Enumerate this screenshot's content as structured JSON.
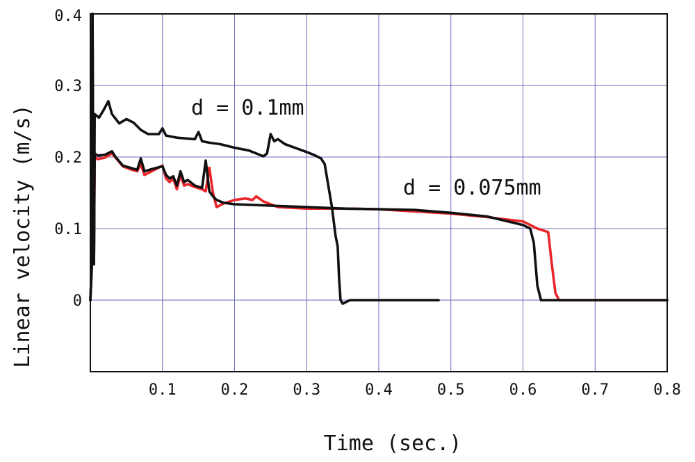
{
  "chart_data": {
    "type": "line",
    "xlabel": "Time (sec.)",
    "ylabel": "Linear velocity (m/s)",
    "xlim": [
      0,
      0.8
    ],
    "ylim": [
      -0.1,
      0.4
    ],
    "x_ticks": [
      0.1,
      0.2,
      0.3,
      0.4,
      0.5,
      0.6,
      0.7,
      0.8
    ],
    "x_tick_labels": [
      "0.1",
      "0.2",
      "0.3",
      "0.4",
      "0.5",
      "0.6",
      "0.7",
      "0.8"
    ],
    "y_ticks": [
      0,
      0.1,
      0.2,
      0.3,
      0.4
    ],
    "y_tick_labels": [
      "0",
      "0.1",
      "0.2",
      "0.3",
      "0.4"
    ],
    "grid": true,
    "annotations": [
      {
        "text": "d = 0.1mm",
        "x": 0.14,
        "y": 0.267
      },
      {
        "text": "d = 0.075mm",
        "x": 0.435,
        "y": 0.152
      }
    ],
    "series": [
      {
        "color": "#e8262a",
        "points": [
          [
            0,
            0
          ],
          [
            0.002,
            0.05
          ],
          [
            0.003,
            0.4
          ],
          [
            0.004,
            0.1
          ],
          [
            0.005,
            0.06
          ],
          [
            0.006,
            0.2
          ],
          [
            0.01,
            0.197
          ],
          [
            0.02,
            0.199
          ],
          [
            0.03,
            0.205
          ],
          [
            0.035,
            0.199
          ],
          [
            0.045,
            0.187
          ],
          [
            0.055,
            0.183
          ],
          [
            0.065,
            0.18
          ],
          [
            0.07,
            0.19
          ],
          [
            0.075,
            0.175
          ],
          [
            0.085,
            0.18
          ],
          [
            0.1,
            0.188
          ],
          [
            0.105,
            0.17
          ],
          [
            0.11,
            0.165
          ],
          [
            0.115,
            0.17
          ],
          [
            0.12,
            0.155
          ],
          [
            0.125,
            0.175
          ],
          [
            0.13,
            0.16
          ],
          [
            0.135,
            0.162
          ],
          [
            0.145,
            0.158
          ],
          [
            0.155,
            0.155
          ],
          [
            0.16,
            0.152
          ],
          [
            0.165,
            0.185
          ],
          [
            0.17,
            0.15
          ],
          [
            0.175,
            0.13
          ],
          [
            0.185,
            0.135
          ],
          [
            0.2,
            0.14
          ],
          [
            0.215,
            0.142
          ],
          [
            0.225,
            0.14
          ],
          [
            0.23,
            0.145
          ],
          [
            0.24,
            0.138
          ],
          [
            0.26,
            0.13
          ],
          [
            0.3,
            0.128
          ],
          [
            0.35,
            0.128
          ],
          [
            0.4,
            0.127
          ],
          [
            0.45,
            0.124
          ],
          [
            0.5,
            0.121
          ],
          [
            0.55,
            0.116
          ],
          [
            0.6,
            0.11
          ],
          [
            0.62,
            0.1
          ],
          [
            0.635,
            0.095
          ],
          [
            0.64,
            0.05
          ],
          [
            0.645,
            0.01
          ],
          [
            0.65,
            0.0
          ],
          [
            0.7,
            0.0
          ],
          [
            0.8,
            0.0
          ]
        ]
      },
      {
        "color": "#111111",
        "points": [
          [
            0,
            0
          ],
          [
            0.002,
            0.05
          ],
          [
            0.003,
            0.4
          ],
          [
            0.004,
            0.1
          ],
          [
            0.005,
            0.06
          ],
          [
            0.006,
            0.205
          ],
          [
            0.01,
            0.202
          ],
          [
            0.02,
            0.203
          ],
          [
            0.03,
            0.208
          ],
          [
            0.035,
            0.2
          ],
          [
            0.045,
            0.188
          ],
          [
            0.055,
            0.185
          ],
          [
            0.065,
            0.182
          ],
          [
            0.07,
            0.198
          ],
          [
            0.075,
            0.18
          ],
          [
            0.085,
            0.183
          ],
          [
            0.1,
            0.187
          ],
          [
            0.105,
            0.175
          ],
          [
            0.11,
            0.17
          ],
          [
            0.115,
            0.173
          ],
          [
            0.12,
            0.16
          ],
          [
            0.125,
            0.18
          ],
          [
            0.13,
            0.165
          ],
          [
            0.135,
            0.168
          ],
          [
            0.145,
            0.16
          ],
          [
            0.155,
            0.157
          ],
          [
            0.16,
            0.195
          ],
          [
            0.165,
            0.152
          ],
          [
            0.17,
            0.145
          ],
          [
            0.175,
            0.14
          ],
          [
            0.185,
            0.136
          ],
          [
            0.2,
            0.134
          ],
          [
            0.25,
            0.132
          ],
          [
            0.3,
            0.13
          ],
          [
            0.35,
            0.128
          ],
          [
            0.4,
            0.127
          ],
          [
            0.45,
            0.126
          ],
          [
            0.5,
            0.122
          ],
          [
            0.55,
            0.117
          ],
          [
            0.6,
            0.105
          ],
          [
            0.61,
            0.1
          ],
          [
            0.615,
            0.08
          ],
          [
            0.62,
            0.02
          ],
          [
            0.625,
            0.0
          ],
          [
            0.7,
            0.0
          ],
          [
            0.8,
            0.0
          ]
        ]
      },
      {
        "color": "#111111",
        "points": [
          [
            0,
            0
          ],
          [
            0.002,
            0.045
          ],
          [
            0.003,
            0.4
          ],
          [
            0.004,
            0.11
          ],
          [
            0.005,
            0.05
          ],
          [
            0.006,
            0.26
          ],
          [
            0.012,
            0.255
          ],
          [
            0.018,
            0.265
          ],
          [
            0.025,
            0.278
          ],
          [
            0.03,
            0.26
          ],
          [
            0.04,
            0.247
          ],
          [
            0.05,
            0.253
          ],
          [
            0.06,
            0.248
          ],
          [
            0.07,
            0.238
          ],
          [
            0.08,
            0.232
          ],
          [
            0.095,
            0.232
          ],
          [
            0.1,
            0.24
          ],
          [
            0.105,
            0.23
          ],
          [
            0.12,
            0.227
          ],
          [
            0.145,
            0.225
          ],
          [
            0.15,
            0.235
          ],
          [
            0.155,
            0.222
          ],
          [
            0.165,
            0.22
          ],
          [
            0.18,
            0.218
          ],
          [
            0.2,
            0.213
          ],
          [
            0.22,
            0.209
          ],
          [
            0.24,
            0.201
          ],
          [
            0.245,
            0.205
          ],
          [
            0.25,
            0.232
          ],
          [
            0.255,
            0.222
          ],
          [
            0.26,
            0.225
          ],
          [
            0.27,
            0.218
          ],
          [
            0.3,
            0.207
          ],
          [
            0.31,
            0.203
          ],
          [
            0.32,
            0.198
          ],
          [
            0.325,
            0.19
          ],
          [
            0.33,
            0.16
          ],
          [
            0.335,
            0.13
          ],
          [
            0.34,
            0.09
          ],
          [
            0.343,
            0.075
          ],
          [
            0.345,
            0.03
          ],
          [
            0.347,
            0.0
          ],
          [
            0.35,
            -0.005
          ],
          [
            0.36,
            0.0
          ],
          [
            0.4,
            0.0
          ],
          [
            0.45,
            0.0
          ],
          [
            0.483,
            0.0
          ]
        ]
      }
    ]
  }
}
